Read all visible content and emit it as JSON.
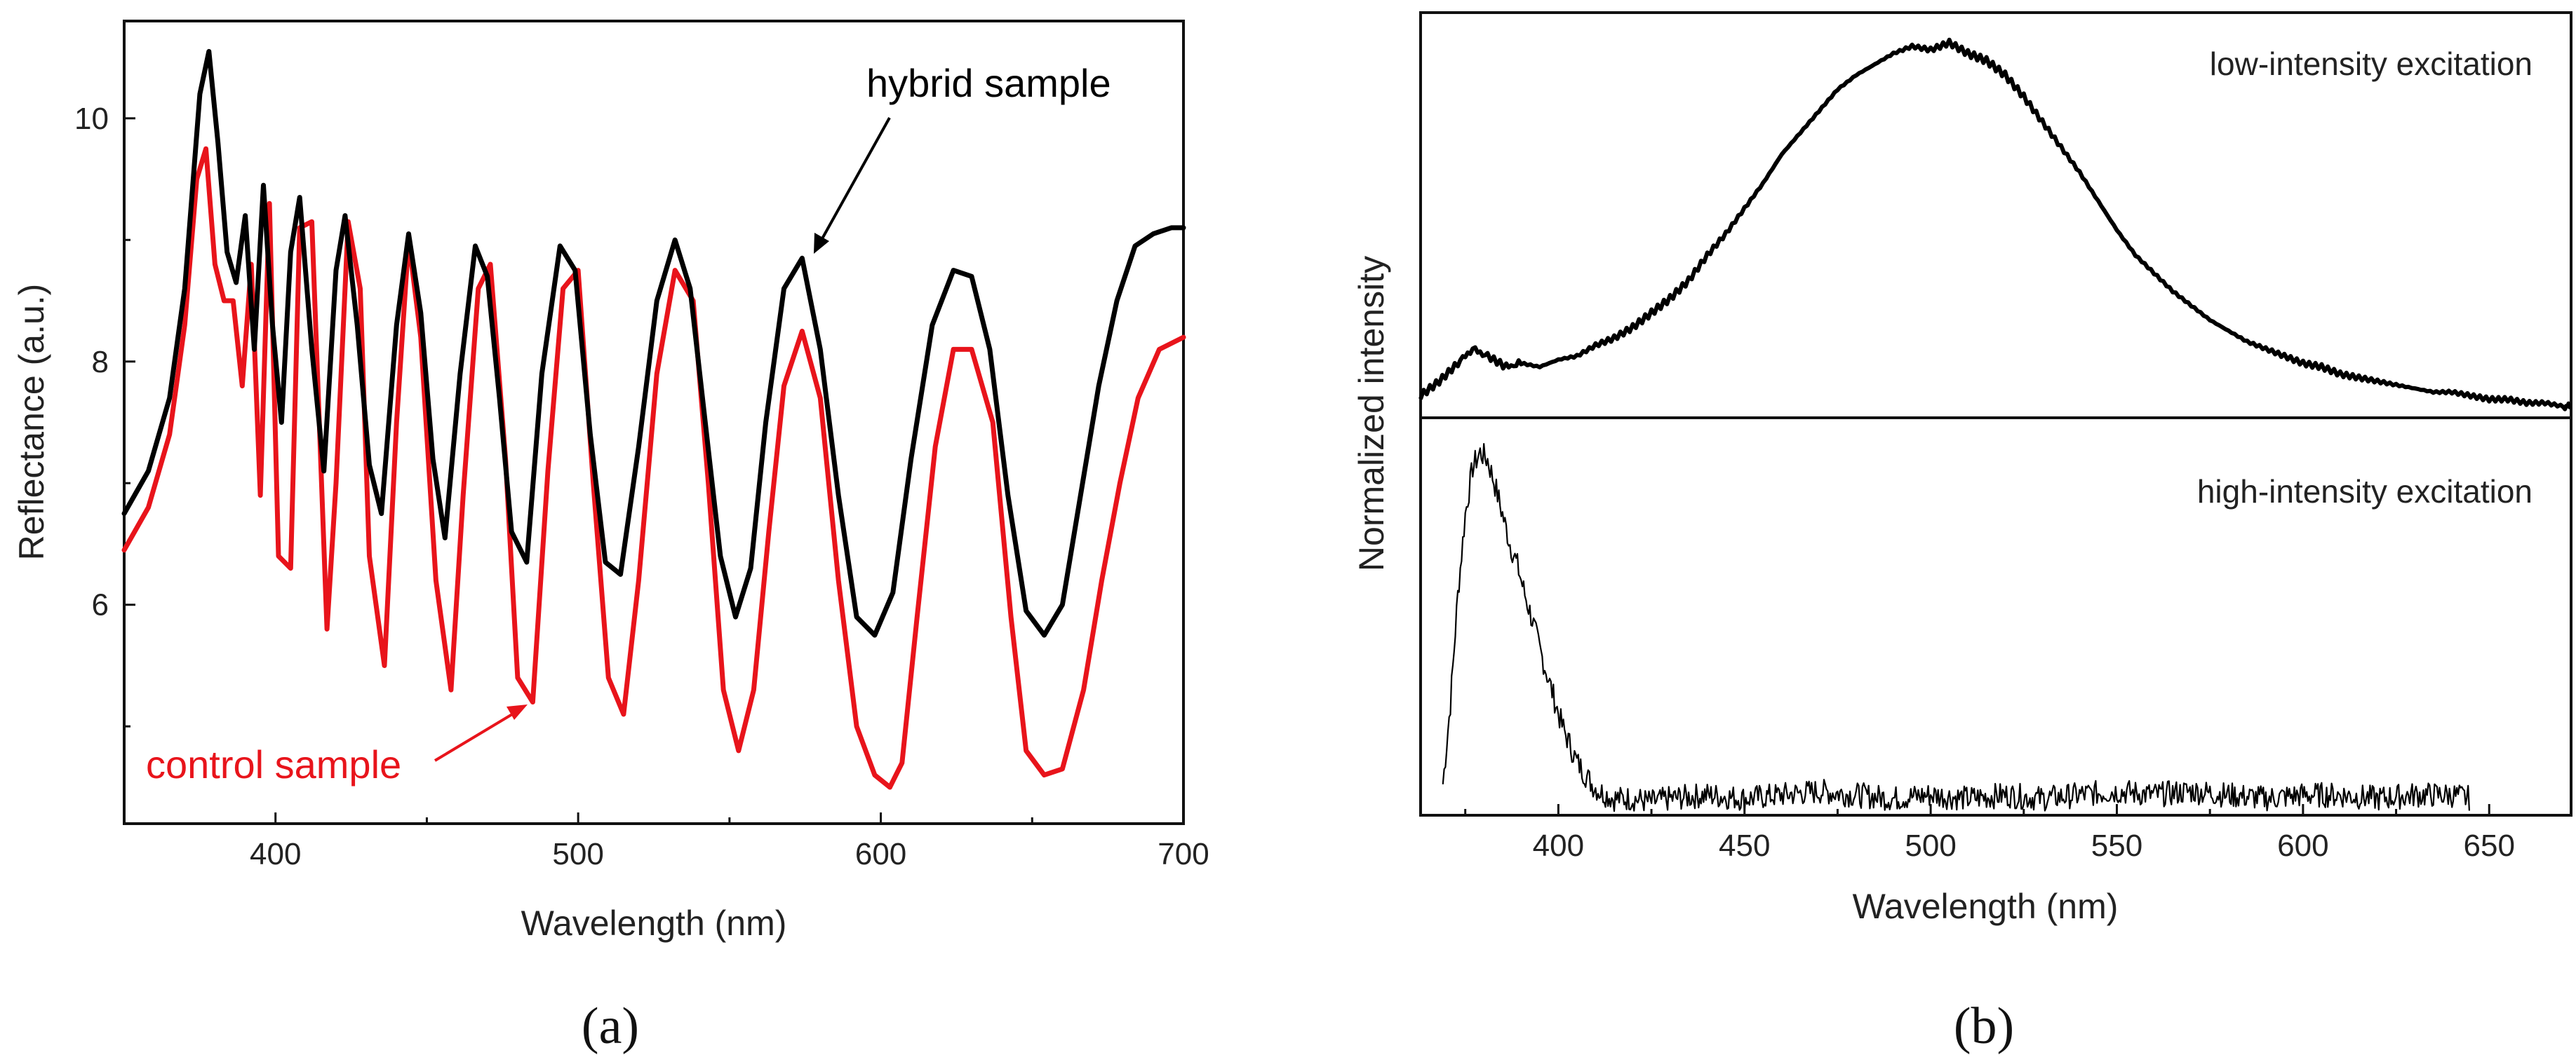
{
  "chart_data": [
    {
      "panel": "(a)",
      "type": "line",
      "xlabel": "Wavelength (nm)",
      "ylabel": "Reflectance (a.u.)",
      "xlim": [
        350,
        700
      ],
      "ylim": [
        4.2,
        10.8
      ],
      "xticks": [
        400,
        500,
        600,
        700
      ],
      "yticks": [
        6,
        8,
        10
      ],
      "series": [
        {
          "name": "hybrid sample",
          "color": "#000000",
          "x": [
            350,
            358,
            365,
            370,
            375,
            378,
            381,
            384,
            387,
            390,
            393,
            396,
            399,
            402,
            405,
            408,
            412,
            416,
            420,
            423,
            427,
            431,
            435,
            440,
            444,
            448,
            452,
            456,
            461,
            466,
            470,
            474,
            478,
            483,
            488,
            494,
            499,
            504,
            509,
            514,
            520,
            526,
            532,
            537,
            542,
            547,
            552,
            557,
            562,
            568,
            574,
            580,
            586,
            592,
            598,
            604,
            610,
            617,
            624,
            630,
            636,
            642,
            648,
            654,
            660,
            666,
            672,
            678,
            684,
            690,
            696,
            700
          ],
          "y": [
            6.75,
            7.1,
            7.7,
            8.6,
            10.2,
            10.55,
            9.8,
            8.9,
            8.65,
            9.2,
            8.1,
            9.45,
            8.3,
            7.5,
            8.9,
            9.35,
            8.1,
            7.1,
            8.75,
            9.2,
            8.3,
            7.15,
            6.75,
            8.3,
            9.05,
            8.4,
            7.2,
            6.55,
            7.9,
            8.95,
            8.7,
            7.7,
            6.6,
            6.35,
            7.9,
            8.95,
            8.75,
            7.4,
            6.35,
            6.25,
            7.3,
            8.5,
            9.0,
            8.6,
            7.5,
            6.4,
            5.9,
            6.3,
            7.5,
            8.6,
            8.85,
            8.1,
            6.9,
            5.9,
            5.75,
            6.1,
            7.2,
            8.3,
            8.75,
            8.7,
            8.1,
            6.9,
            5.95,
            5.75,
            6.0,
            6.9,
            7.8,
            8.5,
            8.95,
            9.05,
            9.1,
            9.1
          ]
        },
        {
          "name": "control sample",
          "color": "#e8141b",
          "x": [
            350,
            358,
            365,
            370,
            374,
            377,
            380,
            383,
            386,
            389,
            392,
            395,
            398,
            401,
            405,
            408,
            412,
            417,
            420,
            424,
            428,
            431,
            436,
            440,
            444,
            448,
            453,
            458,
            462,
            467,
            471,
            476,
            480,
            485,
            490,
            495,
            500,
            505,
            510,
            515,
            520,
            526,
            532,
            538,
            543,
            548,
            553,
            558,
            563,
            568,
            574,
            580,
            586,
            592,
            598,
            603,
            607,
            612,
            618,
            624,
            630,
            637,
            643,
            648,
            654,
            660,
            667,
            673,
            679,
            685,
            692,
            700
          ],
          "y": [
            6.45,
            6.8,
            7.4,
            8.3,
            9.5,
            9.75,
            8.8,
            8.5,
            8.5,
            7.8,
            8.8,
            6.9,
            9.3,
            6.4,
            6.3,
            9.1,
            9.15,
            5.8,
            7.0,
            9.15,
            8.6,
            6.4,
            5.5,
            7.5,
            9.0,
            8.2,
            6.2,
            5.3,
            6.9,
            8.6,
            8.8,
            7.2,
            5.4,
            5.2,
            7.1,
            8.6,
            8.75,
            7.0,
            5.4,
            5.1,
            6.2,
            7.9,
            8.75,
            8.5,
            7.0,
            5.3,
            4.8,
            5.3,
            6.6,
            7.8,
            8.25,
            7.7,
            6.2,
            5.0,
            4.6,
            4.5,
            4.7,
            5.9,
            7.3,
            8.1,
            8.1,
            7.5,
            5.9,
            4.8,
            4.6,
            4.65,
            5.3,
            6.2,
            7.0,
            7.7,
            8.1,
            8.2
          ]
        }
      ],
      "annotations": [
        "hybrid sample",
        "control sample"
      ]
    },
    {
      "panel": "(b)",
      "type": "line",
      "xlabel": "Wavelength (nm)",
      "ylabel": "Normalized intensity",
      "xlim": [
        363,
        672
      ],
      "xticks": [
        400,
        450,
        500,
        550,
        600,
        650
      ],
      "subplots": [
        {
          "title": "low-intensity excitation",
          "color": "#000000",
          "ylim": [
            0,
            1.08
          ],
          "x": [
            363,
            368,
            373,
            377,
            381,
            386,
            390,
            395,
            400,
            405,
            410,
            415,
            420,
            425,
            430,
            435,
            440,
            445,
            450,
            455,
            460,
            465,
            470,
            475,
            480,
            485,
            490,
            495,
            500,
            505,
            510,
            515,
            520,
            525,
            530,
            535,
            540,
            545,
            550,
            555,
            560,
            565,
            570,
            575,
            580,
            585,
            590,
            595,
            600,
            605,
            610,
            615,
            620,
            625,
            630,
            635,
            640,
            645,
            650,
            655,
            660,
            665,
            670,
            672
          ],
          "y": [
            0.04,
            0.08,
            0.13,
            0.17,
            0.15,
            0.12,
            0.13,
            0.12,
            0.14,
            0.15,
            0.18,
            0.2,
            0.23,
            0.27,
            0.31,
            0.36,
            0.43,
            0.49,
            0.56,
            0.63,
            0.71,
            0.77,
            0.83,
            0.89,
            0.93,
            0.96,
            0.99,
            1.01,
            1.0,
            1.02,
            0.99,
            0.97,
            0.93,
            0.87,
            0.8,
            0.73,
            0.66,
            0.58,
            0.5,
            0.43,
            0.38,
            0.33,
            0.29,
            0.25,
            0.22,
            0.19,
            0.17,
            0.15,
            0.13,
            0.12,
            0.1,
            0.09,
            0.08,
            0.07,
            0.06,
            0.05,
            0.05,
            0.04,
            0.03,
            0.03,
            0.02,
            0.02,
            0.01,
            0.01
          ]
        },
        {
          "title": "high-intensity excitation",
          "color": "#000000",
          "ylim": [
            0,
            1.02
          ],
          "x": [
            369,
            371,
            373,
            375,
            377,
            379,
            381,
            383,
            385,
            387,
            389,
            391,
            393,
            395,
            397,
            399,
            401,
            403,
            405,
            407,
            409,
            411,
            413,
            415,
            420,
            425,
            430,
            440,
            450,
            460,
            470,
            480,
            490,
            500,
            510,
            520,
            530,
            540,
            550,
            560,
            570,
            580,
            590,
            600,
            610,
            620,
            630,
            640,
            645
          ],
          "y": [
            0.08,
            0.3,
            0.6,
            0.82,
            0.95,
            0.99,
            0.97,
            0.9,
            0.82,
            0.74,
            0.68,
            0.6,
            0.53,
            0.45,
            0.38,
            0.31,
            0.24,
            0.19,
            0.14,
            0.11,
            0.08,
            0.06,
            0.05,
            0.04,
            0.04,
            0.03,
            0.04,
            0.05,
            0.04,
            0.05,
            0.06,
            0.05,
            0.04,
            0.05,
            0.04,
            0.05,
            0.04,
            0.05,
            0.06,
            0.05,
            0.06,
            0.05,
            0.04,
            0.05,
            0.05,
            0.04,
            0.05,
            0.05,
            0.04
          ]
        }
      ]
    }
  ],
  "labels": {
    "panel_a": "(a)",
    "panel_b": "(b)"
  }
}
